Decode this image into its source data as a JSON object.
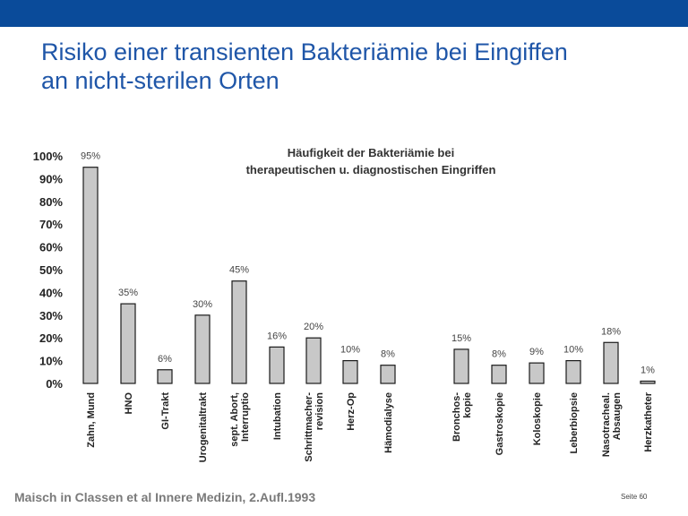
{
  "slide": {
    "title_line1": "Risiko einer transienten Bakteriämie bei Eingiffen",
    "title_line2": "an nicht-sterilen Orten",
    "source": "Maisch in Classen et al Innere Medizin, 2.Aufl.1993",
    "page_label": "Seite 60"
  },
  "colors": {
    "topbar": "#0a4b9a",
    "title": "#1f56a8",
    "bar_fill": "#c8c8c8",
    "bar_stroke": "#1a1a1a"
  },
  "chart_data": {
    "type": "bar",
    "title_line1": "Häufigkeit der Bakteriämie bei",
    "title_line2": "therapeutischen u. diagnostischen Eingriffen",
    "ylim": [
      0,
      100
    ],
    "y_ticks": [
      "0%",
      "10%",
      "20%",
      "30%",
      "40%",
      "50%",
      "60%",
      "70%",
      "80%",
      "90%",
      "100%"
    ],
    "grid": false,
    "categories": [
      [
        "Zahn, Mund"
      ],
      [
        "HNO"
      ],
      [
        "GI-Trakt"
      ],
      [
        "Urogenitaltrakt"
      ],
      [
        "sept. Abort,",
        "Interruptio"
      ],
      [
        "Intubation"
      ],
      [
        "Schrittmacher-",
        "revision"
      ],
      [
        "Herz-Op"
      ],
      [
        "Hämodialyse"
      ],
      [
        "Bronchos-",
        "kopie"
      ],
      [
        "Gastroskopie"
      ],
      [
        "Koloskopie"
      ],
      [
        "Leberbiopsie"
      ],
      [
        "Nasotracheal.",
        "Absaugen"
      ],
      [
        "Herzkatheter"
      ]
    ],
    "values": [
      95,
      35,
      6,
      30,
      45,
      16,
      20,
      10,
      8,
      15,
      8,
      9,
      10,
      18,
      1
    ],
    "data_labels": [
      "95%",
      "35%",
      "6%",
      "30%",
      "45%",
      "16%",
      "20%",
      "10%",
      "8%",
      "15%",
      "8%",
      "9%",
      "10%",
      "18%",
      "1%"
    ]
  }
}
